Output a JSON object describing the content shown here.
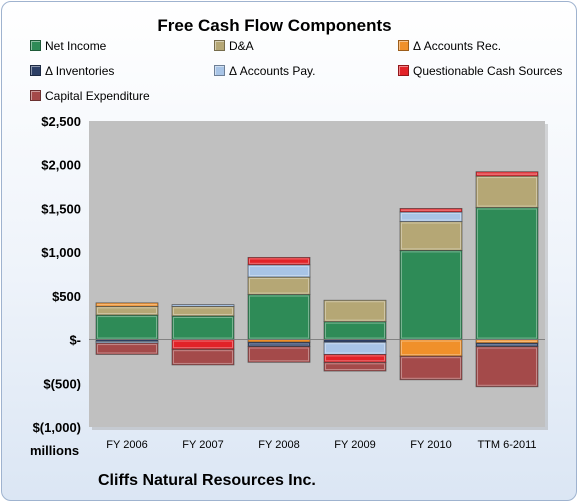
{
  "chart_data": {
    "type": "bar",
    "stacked": true,
    "title": "Free Cash Flow Components",
    "units_label": "millions",
    "footer": "Cliffs Natural Resources Inc.",
    "categories": [
      "FY 2006",
      "FY 2007",
      "FY 2008",
      "FY 2009",
      "FY 2010",
      "TTM 6-2011"
    ],
    "ylim": [
      -1000,
      2500
    ],
    "yticks": [
      2500,
      2000,
      1500,
      1000,
      500,
      0,
      -500,
      -1000
    ],
    "ytick_labels": [
      "$2,500",
      "$2,000",
      "$1,500",
      "$1,000",
      "$500",
      "$-",
      "$(500)",
      "$(1,000)"
    ],
    "grid": false,
    "plot_background": "#c0c0c0",
    "legend_position": "top",
    "series": [
      {
        "name": "Net Income",
        "color": "#2e8b57",
        "values": [
          280,
          270,
          515,
          205,
          1020,
          1510
        ]
      },
      {
        "name": "D&A",
        "color": "#b5a775",
        "values": [
          100,
          110,
          200,
          245,
          330,
          360
        ]
      },
      {
        "name": "Δ Accounts Rec.",
        "color": "#f0902a",
        "values": [
          40,
          0,
          -30,
          0,
          -190,
          -40
        ]
      },
      {
        "name": "Δ Inventories",
        "color": "#2c3f66",
        "values": [
          -20,
          0,
          -50,
          -30,
          0,
          -40
        ]
      },
      {
        "name": "Δ Accounts Pay.",
        "color": "#a8c4e6",
        "values": [
          -20,
          20,
          140,
          -140,
          110,
          0
        ]
      },
      {
        "name": "Questionable Cash Sources",
        "color": "#e22228",
        "values": [
          0,
          -110,
          85,
          -90,
          40,
          50
        ]
      },
      {
        "name": "Capital Expenditure",
        "color": "#a44a4a",
        "values": [
          -130,
          -180,
          -180,
          -100,
          -270,
          -460
        ]
      }
    ]
  }
}
